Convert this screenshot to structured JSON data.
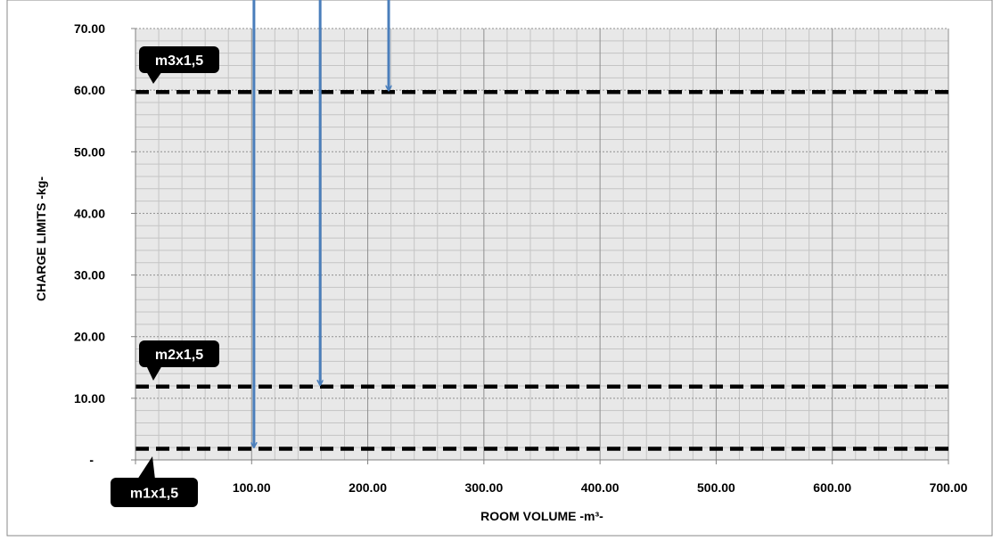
{
  "chart_data": {
    "type": "line",
    "title": "",
    "xlabel": "ROOM VOLUME -m³-",
    "ylabel": "CHARGE LIMITS  -kg-",
    "xlim": [
      0,
      700
    ],
    "ylim": [
      0,
      70
    ],
    "x_ticks": [
      0,
      100,
      200,
      300,
      400,
      500,
      600,
      700
    ],
    "x_tick_labels": [
      "",
      "100.00",
      "200.00",
      "300.00",
      "400.00",
      "500.00",
      "600.00",
      "700.00"
    ],
    "y_ticks": [
      0,
      10,
      20,
      30,
      40,
      50,
      60,
      70
    ],
    "y_tick_labels": [
      "-",
      "10.00",
      "20.00",
      "30.00",
      "40.00",
      "50.00",
      "60.00",
      "70.00"
    ],
    "grid": true,
    "series": [
      {
        "name": "m3x1,5",
        "style": "dashed",
        "color": "#000000",
        "x": [
          0,
          700
        ],
        "y": [
          59.7,
          59.7
        ]
      },
      {
        "name": "m2x1,5",
        "style": "dashed",
        "color": "#000000",
        "x": [
          0,
          700
        ],
        "y": [
          11.9,
          11.9
        ]
      },
      {
        "name": "m1x1,5",
        "style": "dashed",
        "color": "#000000",
        "x": [
          0,
          700
        ],
        "y": [
          1.8,
          1.8
        ]
      }
    ],
    "annotations": [
      {
        "type": "arrow",
        "color": "#4a7ebb",
        "x": 102,
        "y_from": 70,
        "y_to": 1.8
      },
      {
        "type": "arrow",
        "color": "#4a7ebb",
        "x": 159,
        "y_from": 70,
        "y_to": 11.9
      },
      {
        "type": "arrow",
        "color": "#4a7ebb",
        "x": 218,
        "y_from": 70,
        "y_to": 59.7
      }
    ],
    "colors": {
      "plot_background": "#e8e8e8",
      "grid": "#b5b5b5",
      "arrow": "#4a7ebb",
      "callout": "#000000"
    }
  }
}
